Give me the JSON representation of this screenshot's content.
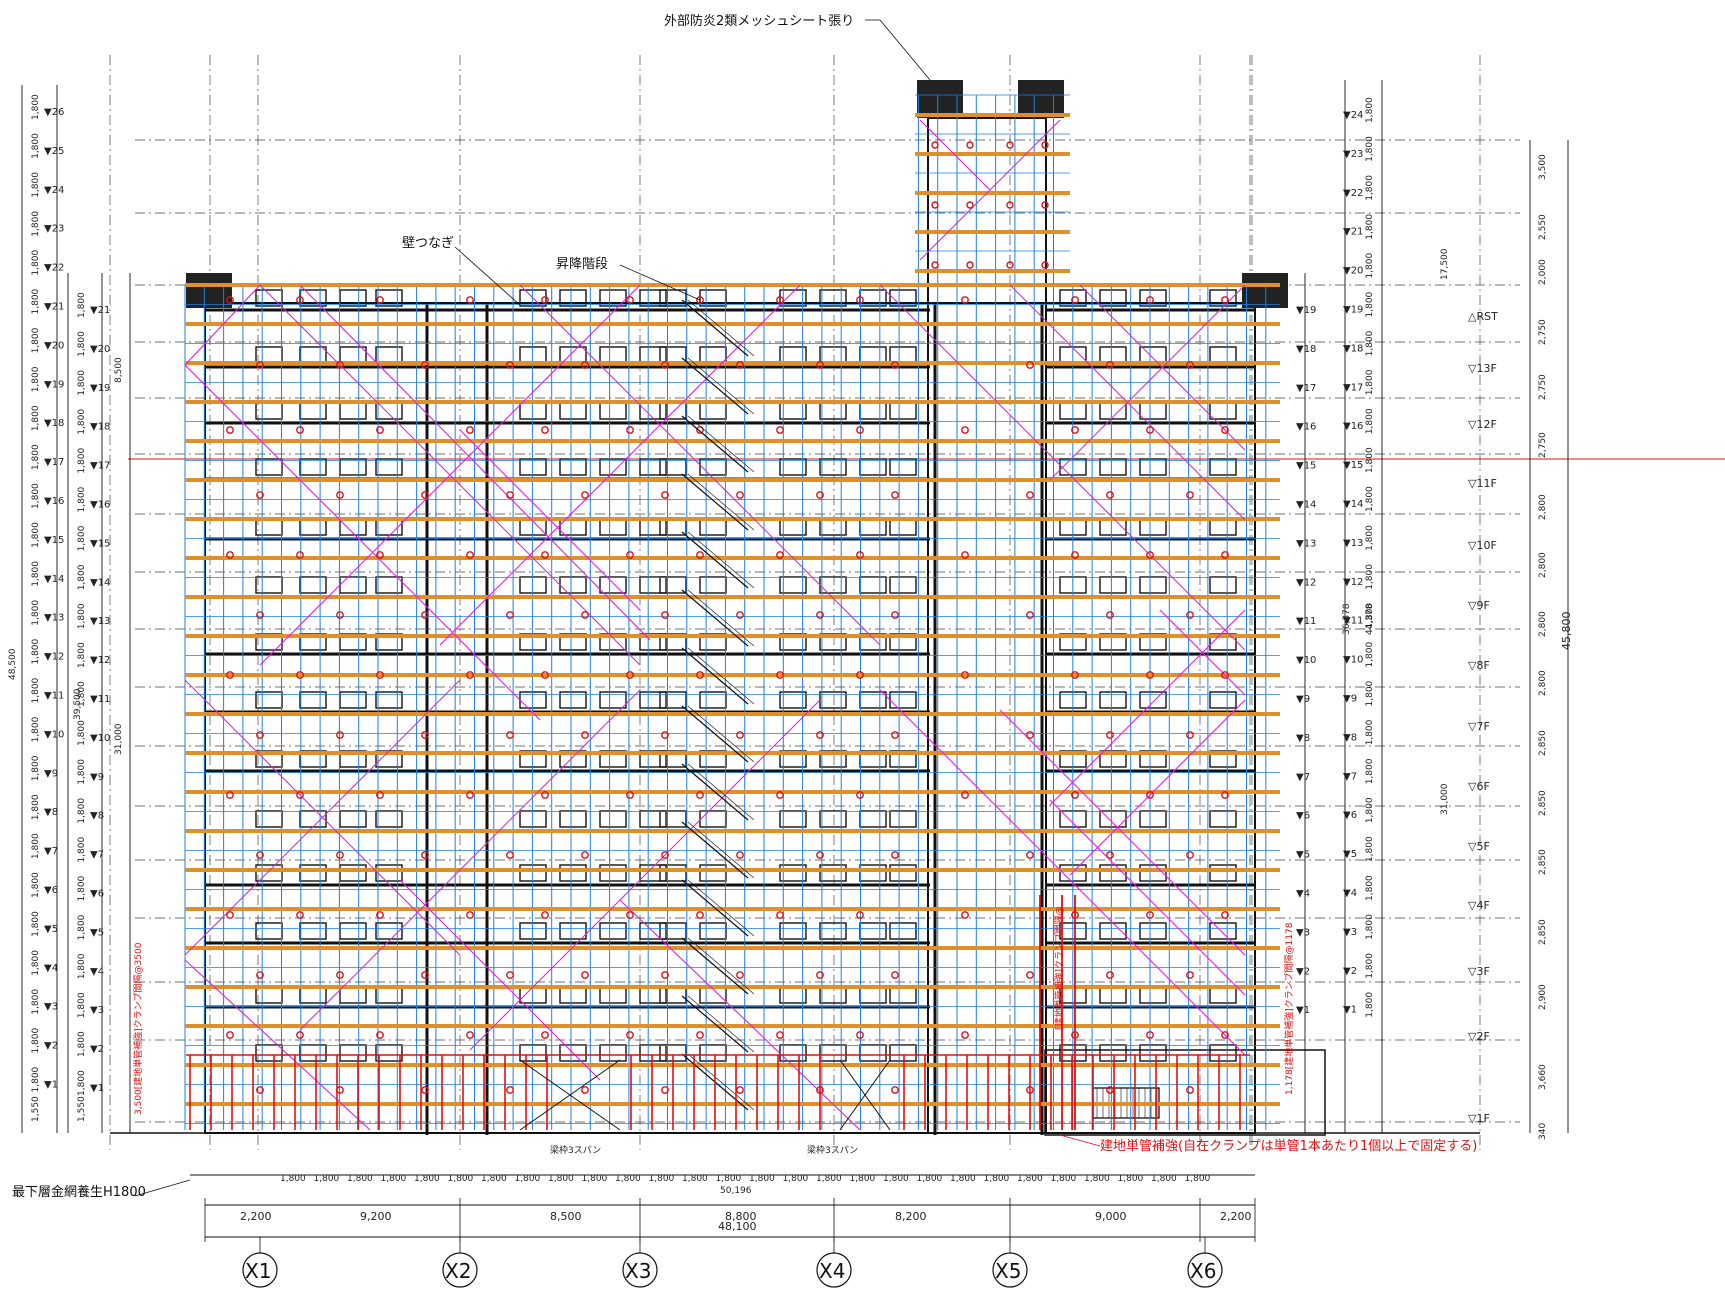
{
  "annotations": {
    "mesh_sheet": "外部防炎2類メッシュシート張り",
    "wall_tie": "壁つなぎ",
    "stairs": "昇降階段",
    "bottom_net": "最下層金網養生H1800",
    "single_pipe_note": "建地単管補強(自在クランプは単管1本あたり1個以上で固定する)",
    "beam_left": "梁枠3スパン",
    "beam_right": "梁枠3スパン",
    "vert_note_1": "3,500[建地単管補強]クランプ間隔@3500",
    "vert_note_2": "1,178[建地単管補強]クランプ間隔@1178",
    "vert_note_3": "[建地単管補強]クランプ間隔@"
  },
  "levels_right": [
    "△RST",
    "▽13F",
    "▽12F",
    "▽11F",
    "▽10F",
    "▽9F",
    "▽8F",
    "▽7F",
    "▽6F",
    "▽5F",
    "▽4F",
    "▽3F",
    "▽2F",
    "▽1F"
  ],
  "story_heights": [
    "3,500",
    "2,550",
    "2,000",
    "2,750",
    "2,750",
    "2,750",
    "2,800",
    "2,800",
    "2,800",
    "2,800",
    "2,850",
    "2,850",
    "2,850",
    "2,850",
    "2,900",
    "3,660",
    "340"
  ],
  "total_height_right": "45,800",
  "axes": [
    "X1",
    "X2",
    "X3",
    "X4",
    "X5",
    "X6"
  ],
  "spans": [
    "2,200",
    "9,200",
    "8,500",
    "8,800",
    "8,200",
    "9,000",
    "2,200"
  ],
  "total_span": "48,100",
  "total_span_scaffold": "50,196",
  "left_dims": {
    "total": "48,500",
    "inner": "39,500",
    "mid": "31,000",
    "top": "8,500",
    "bottom": "1,550"
  },
  "right_dims": {
    "a": "36,378",
    "b": "44,378",
    "c": "31,000",
    "d": "17,500"
  },
  "left_stage_numbers": [
    "26",
    "25",
    "24",
    "23",
    "22",
    "21",
    "20",
    "19",
    "18",
    "17",
    "16",
    "15",
    "14",
    "13",
    "12",
    "11",
    "10",
    "9",
    "8",
    "7",
    "6",
    "5",
    "4",
    "3",
    "2",
    "1"
  ],
  "left_stage_numbers_inner": [
    "21",
    "20",
    "19",
    "18",
    "17",
    "16",
    "15",
    "14",
    "13",
    "12",
    "11",
    "10",
    "9",
    "8",
    "7",
    "6",
    "5",
    "4",
    "3",
    "2",
    "1"
  ],
  "right_stage_numbers": [
    "19",
    "18",
    "17",
    "16",
    "15",
    "14",
    "13",
    "12",
    "11",
    "10",
    "9",
    "8",
    "7",
    "6",
    "5",
    "4",
    "3",
    "2",
    "1"
  ],
  "right_stage_numbers_outer": [
    "24",
    "23",
    "22",
    "21",
    "20",
    "19",
    "18",
    "17",
    "16",
    "15",
    "14",
    "13",
    "12",
    "11",
    "10",
    "9",
    "8",
    "7",
    "6",
    "5",
    "4",
    "3",
    "2",
    "1"
  ],
  "stage_height": "1,800",
  "bottom_spans": [
    "1,800",
    "1,800",
    "1,800",
    "1,800",
    "1,800",
    "1,800",
    "1,800",
    "1,800",
    "1,800",
    "1,800",
    "1,800",
    "1,800",
    "1,800",
    "1,800",
    "1,800",
    "1,800",
    "1,800",
    "1,800",
    "1,800",
    "1,800",
    "1,800",
    "1,800",
    "1,800",
    "1,800",
    "1,800",
    "1,800",
    "1,800",
    "1,800"
  ],
  "colors": {
    "scaffold": "#1e7fe0",
    "structure": "#111111",
    "brace": "#e020e0",
    "wall_tie": "#e01010",
    "plank": "#e0902a",
    "dash": "#444444"
  }
}
